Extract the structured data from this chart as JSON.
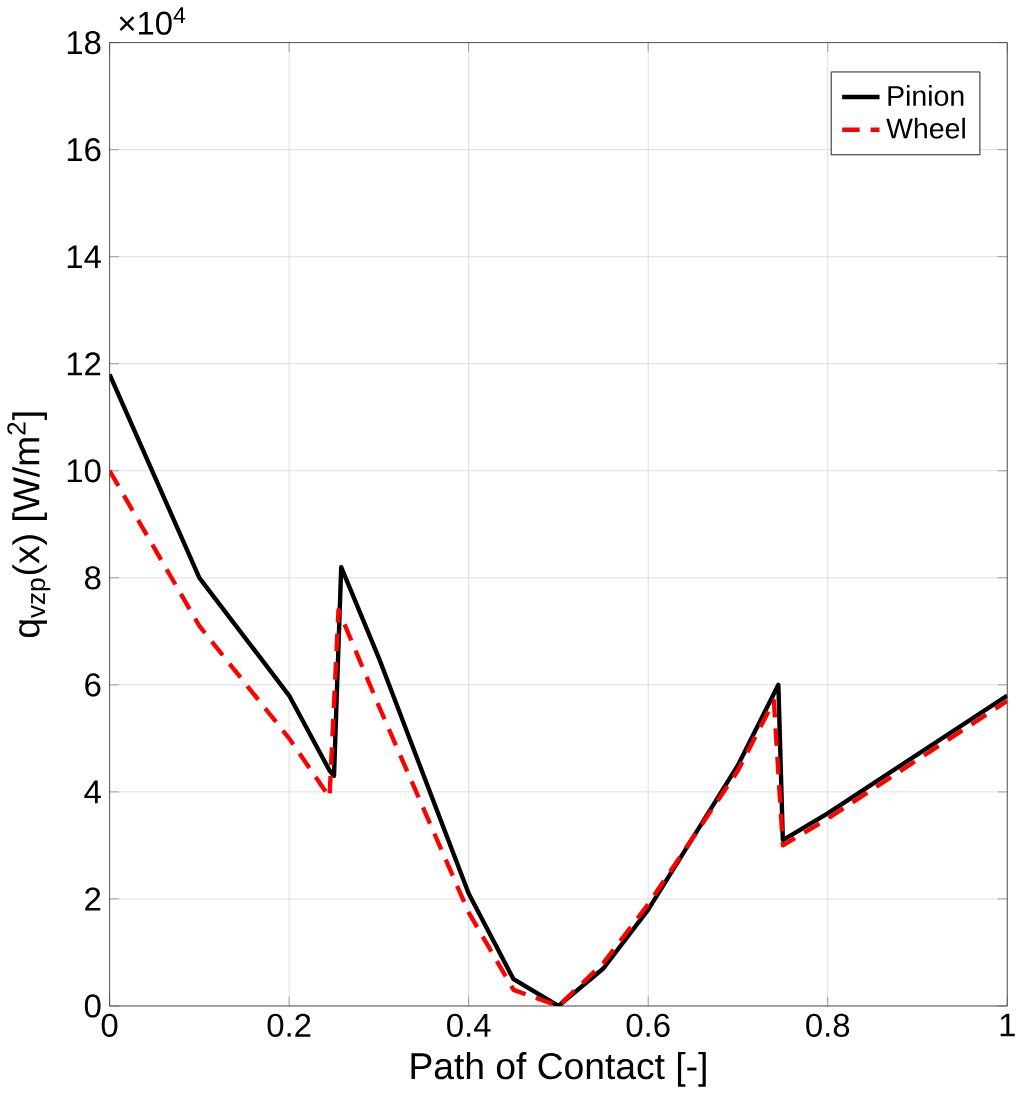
{
  "chart_data": {
    "type": "line",
    "xlabel": "Path of Contact [-]",
    "ylabel": "q$_{vzp}$(x) [W/m$^{2}$]",
    "annotations": [
      "×10$^{4}$"
    ],
    "xlim": [
      0,
      1
    ],
    "ylim": [
      0,
      18
    ],
    "xticks": [
      0,
      0.2,
      0.4,
      0.6,
      0.8,
      1
    ],
    "yticks": [
      0,
      2,
      4,
      6,
      8,
      10,
      12,
      14,
      16,
      18
    ],
    "grid": true,
    "legend": "top right",
    "series": [
      {
        "name": "Pinion",
        "color": "#000000",
        "line_style": "solid",
        "x": [
          0,
          0.1,
          0.2,
          0.245,
          0.25,
          0.258,
          0.3,
          0.4,
          0.45,
          0.5,
          0.55,
          0.6,
          0.7,
          0.745,
          0.75,
          0.8,
          0.9,
          1
        ],
        "values": [
          11.8,
          8.0,
          5.8,
          4.4,
          4.3,
          8.2,
          6.5,
          2.1,
          0.5,
          0,
          0.7,
          1.8,
          4.5,
          6.0,
          3.1,
          3.6,
          4.7,
          5.8
        ]
      },
      {
        "name": "Wheel",
        "color": "#ff0000",
        "line_style": "dashed",
        "x": [
          0,
          0.1,
          0.2,
          0.245,
          0.255,
          0.3,
          0.4,
          0.45,
          0.5,
          0.55,
          0.6,
          0.7,
          0.74,
          0.75,
          0.8,
          0.9,
          1
        ],
        "values": [
          10.0,
          7.1,
          5.0,
          3.9,
          7.4,
          5.6,
          1.75,
          0.3,
          0,
          0.8,
          1.9,
          4.4,
          5.7,
          3.0,
          3.5,
          4.6,
          5.7
        ]
      }
    ]
  }
}
